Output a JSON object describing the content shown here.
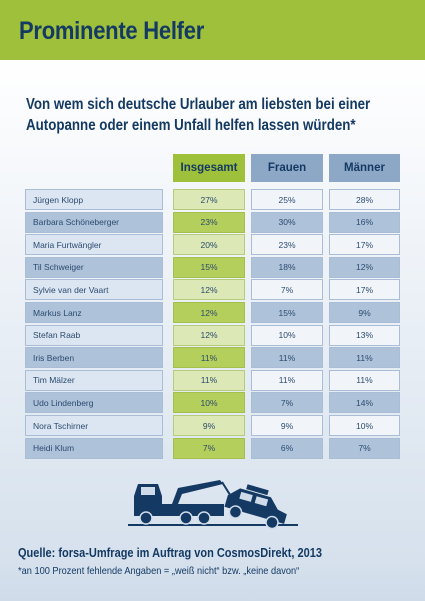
{
  "header": {
    "title": "Prominente Helfer"
  },
  "subtitle": {
    "line1": "Von wem sich deutsche Urlauber am liebsten bei einer",
    "line2": "Autopanne oder einem Unfall helfen lassen würden*"
  },
  "chart_data": {
    "type": "table",
    "columns": [
      "Insgesamt",
      "Frauen",
      "Männer"
    ],
    "rows": [
      {
        "name": "Jürgen Klopp",
        "total": "27%",
        "women": "25%",
        "men": "28%"
      },
      {
        "name": "Barbara Schöneberger",
        "total": "23%",
        "women": "30%",
        "men": "16%"
      },
      {
        "name": "Maria Furtwängler",
        "total": "20%",
        "women": "23%",
        "men": "17%"
      },
      {
        "name": "Til Schweiger",
        "total": "15%",
        "women": "18%",
        "men": "12%"
      },
      {
        "name": "Sylvie van der Vaart",
        "total": "12%",
        "women": "7%",
        "men": "17%"
      },
      {
        "name": "Markus Lanz",
        "total": "12%",
        "women": "15%",
        "men": "9%"
      },
      {
        "name": "Stefan Raab",
        "total": "12%",
        "women": "10%",
        "men": "13%"
      },
      {
        "name": "Iris Berben",
        "total": "11%",
        "women": "11%",
        "men": "11%"
      },
      {
        "name": "Tim Mälzer",
        "total": "11%",
        "women": "11%",
        "men": "11%"
      },
      {
        "name": "Udo Lindenberg",
        "total": "10%",
        "women": "7%",
        "men": "14%"
      },
      {
        "name": "Nora Tschirner",
        "total": "9%",
        "women": "9%",
        "men": "10%"
      },
      {
        "name": "Heidi Klum",
        "total": "7%",
        "women": "6%",
        "men": "7%"
      }
    ]
  },
  "footer": {
    "source": "Quelle: forsa-Umfrage im Auftrag von CosmosDirekt, 2013",
    "footnote": "*an 100 Prozent fehlende Angaben = „weiß nicht“ bzw. „keine davon“"
  },
  "colors": {
    "green": "#9fc03a",
    "navy": "#143a63",
    "blue": "#8da7c7"
  },
  "icons": {
    "illustration": "tow-truck-icon"
  }
}
